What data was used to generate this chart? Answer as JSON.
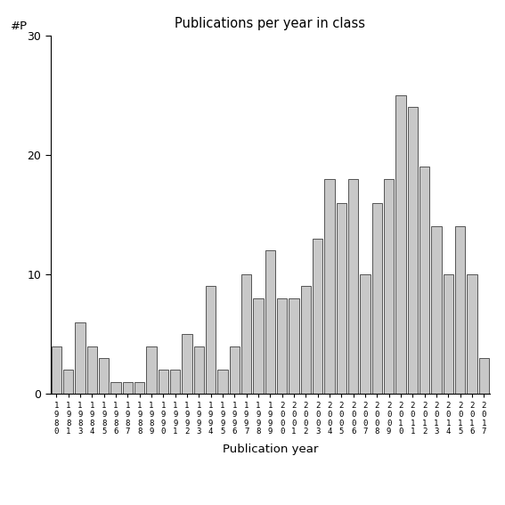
{
  "title": "Publications per year in class",
  "xlabel": "Publication year",
  "ylabel": "#P",
  "ylim": [
    0,
    30
  ],
  "yticks": [
    0,
    10,
    20,
    30
  ],
  "bar_color": "#c8c8c8",
  "bar_edgecolor": "#555555",
  "years": [
    "1980",
    "1981",
    "1983",
    "1984",
    "1985",
    "1986",
    "1987",
    "1988",
    "1989",
    "1990",
    "1991",
    "1992",
    "1993",
    "1994",
    "1995",
    "1996",
    "1997",
    "1998",
    "1999",
    "2000",
    "2001",
    "2002",
    "2003",
    "2004",
    "2005",
    "2006",
    "2007",
    "2008",
    "2009",
    "2010",
    "2011",
    "2012",
    "2013",
    "2014",
    "2015",
    "2016",
    "2017"
  ],
  "values": [
    4,
    2,
    6,
    4,
    3,
    1,
    1,
    1,
    4,
    2,
    2,
    5,
    4,
    9,
    2,
    4,
    10,
    8,
    12,
    8,
    8,
    9,
    13,
    18,
    16,
    18,
    10,
    16,
    18,
    25,
    24,
    19,
    14,
    10,
    14,
    10,
    3
  ],
  "figsize": [
    5.67,
    5.67
  ],
  "dpi": 100
}
